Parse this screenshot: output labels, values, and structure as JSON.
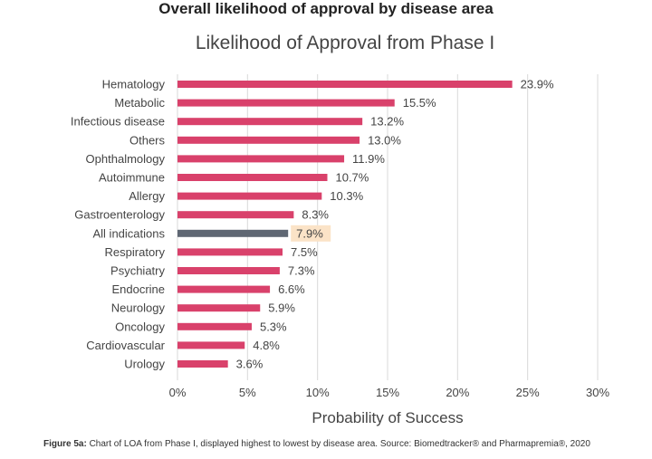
{
  "header": {
    "title": "Overall likelihood of approval by disease area"
  },
  "caption": {
    "label": "Figure 5a:",
    "text": " Chart of LOA from Phase I, displayed highest to lowest by disease area. Source: Biomedtracker® and Pharmapremia®, 2020"
  },
  "colors": {
    "bar": "#d9416b",
    "highlight_bar": "#5f6773",
    "highlight_label_bg": "#fbe3c7",
    "grid": "#d9d9d9"
  },
  "chart_data": {
    "type": "bar",
    "orientation": "horizontal",
    "title": "Likelihood of Approval from Phase I",
    "xlabel": "Probability of Success",
    "ylabel": "",
    "xlim": [
      0,
      30
    ],
    "xticks": [
      "0%",
      "5%",
      "10%",
      "15%",
      "20%",
      "25%",
      "30%"
    ],
    "grid": true,
    "categories": [
      "Hematology",
      "Metabolic",
      "Infectious disease",
      "Others",
      "Ophthalmology",
      "Autoimmune",
      "Allergy",
      "Gastroenterology",
      "All indications",
      "Respiratory",
      "Psychiatry",
      "Endocrine",
      "Neurology",
      "Oncology",
      "Cardiovascular",
      "Urology"
    ],
    "values": [
      23.9,
      15.5,
      13.2,
      13.0,
      11.9,
      10.7,
      10.3,
      8.3,
      7.9,
      7.5,
      7.3,
      6.6,
      5.9,
      5.3,
      4.8,
      3.6
    ],
    "value_labels": [
      "23.9%",
      "15.5%",
      "13.2%",
      "13.0%",
      "11.9%",
      "10.7%",
      "10.3%",
      "8.3%",
      "7.9%",
      "7.5%",
      "7.3%",
      "6.6%",
      "5.9%",
      "5.3%",
      "4.8%",
      "3.6%"
    ],
    "highlight": "All indications"
  }
}
